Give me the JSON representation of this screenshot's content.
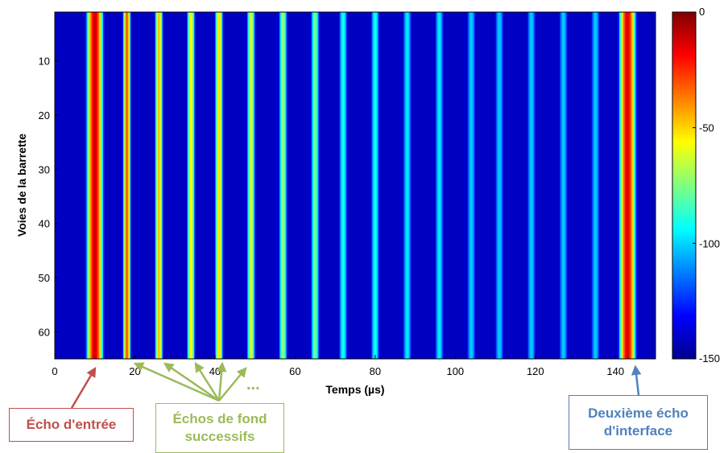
{
  "chart_data": {
    "type": "heatmap",
    "title": "",
    "xlabel": "Temps (µs)",
    "ylabel": "Voies de la barrette",
    "xlim": [
      0,
      150
    ],
    "ylim": [
      1,
      65
    ],
    "x_ticks": [
      0,
      20,
      40,
      60,
      80,
      100,
      120,
      140
    ],
    "y_ticks": [
      10,
      20,
      30,
      40,
      50,
      60
    ],
    "y_reversed": true,
    "colorbar": {
      "min": -150,
      "max": 0,
      "ticks": [
        0,
        -50,
        -100,
        -150
      ],
      "colormap": "jet"
    },
    "background_level_db": -140,
    "echo_times_us": [
      10,
      18,
      26,
      34,
      41,
      49,
      57,
      65,
      72,
      80,
      88,
      96,
      104,
      111,
      119,
      127,
      135,
      143
    ],
    "echo_peak_levels_db": [
      -10,
      -30,
      -45,
      -55,
      -50,
      -60,
      -70,
      -75,
      -90,
      -90,
      -95,
      -95,
      -100,
      -100,
      -100,
      -100,
      -100,
      -12
    ],
    "annotations": [
      {
        "text": "Écho d'entrée",
        "x": 10,
        "color": "#c0504d"
      },
      {
        "text": "Échos de fond\nsuccessifs",
        "x": [
          18,
          26,
          34,
          41,
          49
        ],
        "color": "#9bbb59",
        "ellipsis": "..."
      },
      {
        "text": "Deuxième écho\nd'interface",
        "x": 143,
        "color": "#4f81bd"
      }
    ]
  }
}
